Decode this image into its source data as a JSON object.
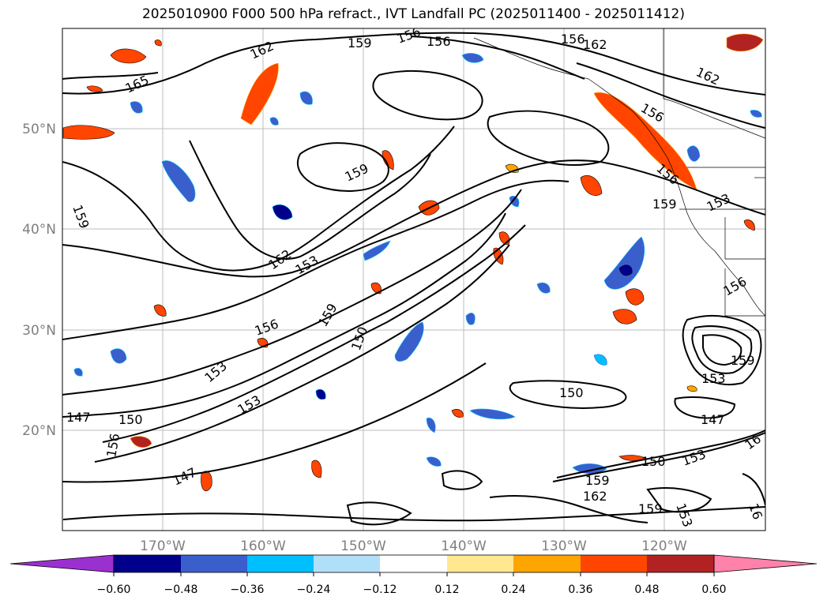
{
  "title": "2025010900 F000 500 hPa refract., IVT Landfall PC (2025011400 - 2025011412)",
  "map": {
    "lat_labels": [
      "50°N",
      "40°N",
      "30°N",
      "20°N"
    ],
    "lon_labels": [
      "170°W",
      "160°W",
      "150°W",
      "140°W",
      "130°W",
      "120°W"
    ],
    "contour_labels": [
      {
        "text": "162"
      },
      {
        "text": "159"
      },
      {
        "text": "156"
      },
      {
        "text": "156"
      },
      {
        "text": "162"
      },
      {
        "text": "165"
      },
      {
        "text": "162"
      },
      {
        "text": "156"
      },
      {
        "text": "156"
      },
      {
        "text": "159"
      },
      {
        "text": "159"
      },
      {
        "text": "153"
      },
      {
        "text": "159"
      },
      {
        "text": "162"
      },
      {
        "text": "153"
      },
      {
        "text": "156"
      },
      {
        "text": "159"
      },
      {
        "text": "150"
      },
      {
        "text": "156"
      },
      {
        "text": "153"
      },
      {
        "text": "159"
      },
      {
        "text": "153"
      },
      {
        "text": "150"
      },
      {
        "text": "147"
      },
      {
        "text": "147"
      },
      {
        "text": "150"
      },
      {
        "text": "156"
      },
      {
        "text": "153"
      },
      {
        "text": "147"
      },
      {
        "text": "150"
      },
      {
        "text": "153"
      },
      {
        "text": "162"
      },
      {
        "text": "159"
      },
      {
        "text": "159"
      },
      {
        "text": "153"
      },
      {
        "text": "16"
      },
      {
        "text": "16"
      },
      {
        "text": "156"
      }
    ]
  },
  "colorbar": {
    "tick_labels": [
      "−0.60",
      "−0.48",
      "−0.36",
      "−0.24",
      "−0.12",
      "0.12",
      "0.24",
      "0.36",
      "0.48",
      "0.60"
    ],
    "colors": [
      "#9b30d0",
      "#00008b",
      "#3a5fcd",
      "#00bfff",
      "#b0e0f8",
      "#ffffff",
      "#ffe890",
      "#ffa500",
      "#ff4500",
      "#b22222",
      "#ff82ab"
    ]
  }
}
